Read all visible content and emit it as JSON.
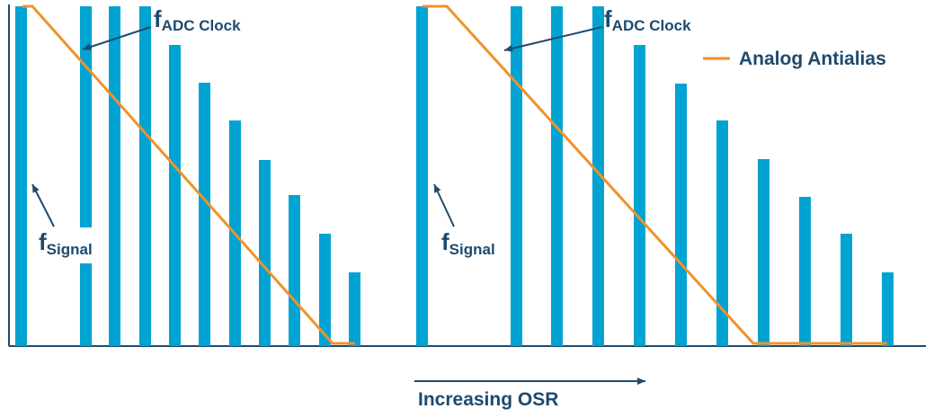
{
  "colors": {
    "bar": "#00a3d1",
    "filter": "#f0922b",
    "axis": "#1d4a6e",
    "text": "#1d4a6e"
  },
  "legend": {
    "label": "Analog Antialias"
  },
  "axis_label": "Increasing OSR",
  "panels": [
    {
      "signal_label": {
        "main": "f",
        "sub": "Signal"
      },
      "clock_label": {
        "main": "f",
        "sub": "ADC Clock"
      }
    },
    {
      "signal_label": {
        "main": "f",
        "sub": "Signal"
      },
      "clock_label": {
        "main": "f",
        "sub": "ADC Clock"
      }
    }
  ]
}
